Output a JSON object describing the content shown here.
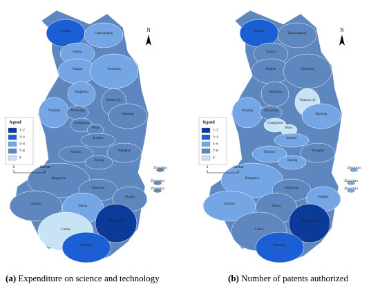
{
  "north": "N",
  "scale": {
    "start": "0",
    "end": "100 km"
  },
  "legend_title": "legend",
  "legend_entries": [
    "1~2",
    "3~4",
    "5~6",
    "7~8",
    "9"
  ],
  "legend_colors": [
    "#0b3a99",
    "#1c5fd4",
    "#74a6e6",
    "#5f87bf",
    "#c9e3f6"
  ],
  "panels": [
    {
      "label": "(a)",
      "caption": "Expenditure on science and technology",
      "cities": [
        {
          "name": "Xuzhou",
          "fill": "#1c5fd4"
        },
        {
          "name": "Lianyungang",
          "fill": "#74a6e6"
        },
        {
          "name": "Suqian",
          "fill": "#74a6e6"
        },
        {
          "name": "Huaian",
          "fill": "#74a6e6"
        },
        {
          "name": "Yancheng",
          "fill": "#74a6e6"
        },
        {
          "name": "Yangzhou",
          "fill": "#74a6e6"
        },
        {
          "name": "Taizhou (1)",
          "fill": "#5f87bf"
        },
        {
          "name": "Nanjing",
          "fill": "#74a6e6"
        },
        {
          "name": "Zhenjiang",
          "fill": "#5f87bf"
        },
        {
          "name": "Nantong",
          "fill": "#5f87bf"
        },
        {
          "name": "Changzhou",
          "fill": "#5f87bf"
        },
        {
          "name": "Wuxi",
          "fill": "#5f87bf"
        },
        {
          "name": "Suzhou",
          "fill": "#5f87bf"
        },
        {
          "name": "Huzhou",
          "fill": "#5f87bf"
        },
        {
          "name": "Shanghai",
          "fill": "#5f87bf"
        },
        {
          "name": "Jiaxing",
          "fill": "#5f87bf"
        },
        {
          "name": "Hangzhou",
          "fill": "#5f87bf"
        },
        {
          "name": "Shaoxing",
          "fill": "#5f87bf"
        },
        {
          "name": "Ningbo",
          "fill": "#5f87bf"
        },
        {
          "name": "Zhoushan",
          "fill": "#5f87bf"
        },
        {
          "name": "Zhoushan",
          "fill": "#5f87bf"
        },
        {
          "name": "Zhoushan",
          "fill": "#5f87bf"
        },
        {
          "name": "Quzhou",
          "fill": "#5f87bf"
        },
        {
          "name": "Jinhua",
          "fill": "#74a6e6"
        },
        {
          "name": "Lishui",
          "fill": "#c9e3f6"
        },
        {
          "name": "Taizhou (2)",
          "fill": "#0b3a99"
        },
        {
          "name": "Wenzhou",
          "fill": "#1c5fd4"
        }
      ]
    },
    {
      "label": "(b)",
      "caption": "Number of patents authorized",
      "cities": [
        {
          "name": "Xuzhou",
          "fill": "#1c5fd4"
        },
        {
          "name": "Lianyungang",
          "fill": "#5f87bf"
        },
        {
          "name": "Suqian",
          "fill": "#5f87bf"
        },
        {
          "name": "Huaian",
          "fill": "#5f87bf"
        },
        {
          "name": "Yancheng",
          "fill": "#5f87bf"
        },
        {
          "name": "Yangzhou",
          "fill": "#5f87bf"
        },
        {
          "name": "Taizhou (1)",
          "fill": "#c9e3f6"
        },
        {
          "name": "Nanjing",
          "fill": "#74a6e6"
        },
        {
          "name": "Zhenjiang",
          "fill": "#5f87bf"
        },
        {
          "name": "Nantong",
          "fill": "#74a6e6"
        },
        {
          "name": "Changzhou",
          "fill": "#c9e3f6"
        },
        {
          "name": "Wuxi",
          "fill": "#c9e3f6"
        },
        {
          "name": "Suzhou",
          "fill": "#74a6e6"
        },
        {
          "name": "Huzhou",
          "fill": "#74a6e6"
        },
        {
          "name": "Shanghai",
          "fill": "#5f87bf"
        },
        {
          "name": "Jiaxing",
          "fill": "#74a6e6"
        },
        {
          "name": "Hangzhou",
          "fill": "#74a6e6"
        },
        {
          "name": "Shaoxing",
          "fill": "#5f87bf"
        },
        {
          "name": "Ningbo",
          "fill": "#74a6e6"
        },
        {
          "name": "Zhoushan",
          "fill": "#74a6e6"
        },
        {
          "name": "Zhoushan",
          "fill": "#74a6e6"
        },
        {
          "name": "Zhoushan",
          "fill": "#74a6e6"
        },
        {
          "name": "Quzhou",
          "fill": "#74a6e6"
        },
        {
          "name": "Jinhua",
          "fill": "#5f87bf"
        },
        {
          "name": "Lishui",
          "fill": "#5f87bf"
        },
        {
          "name": "Taizhou (2)",
          "fill": "#0b3a99"
        },
        {
          "name": "Wenzhou",
          "fill": "#1c5fd4"
        }
      ]
    }
  ]
}
